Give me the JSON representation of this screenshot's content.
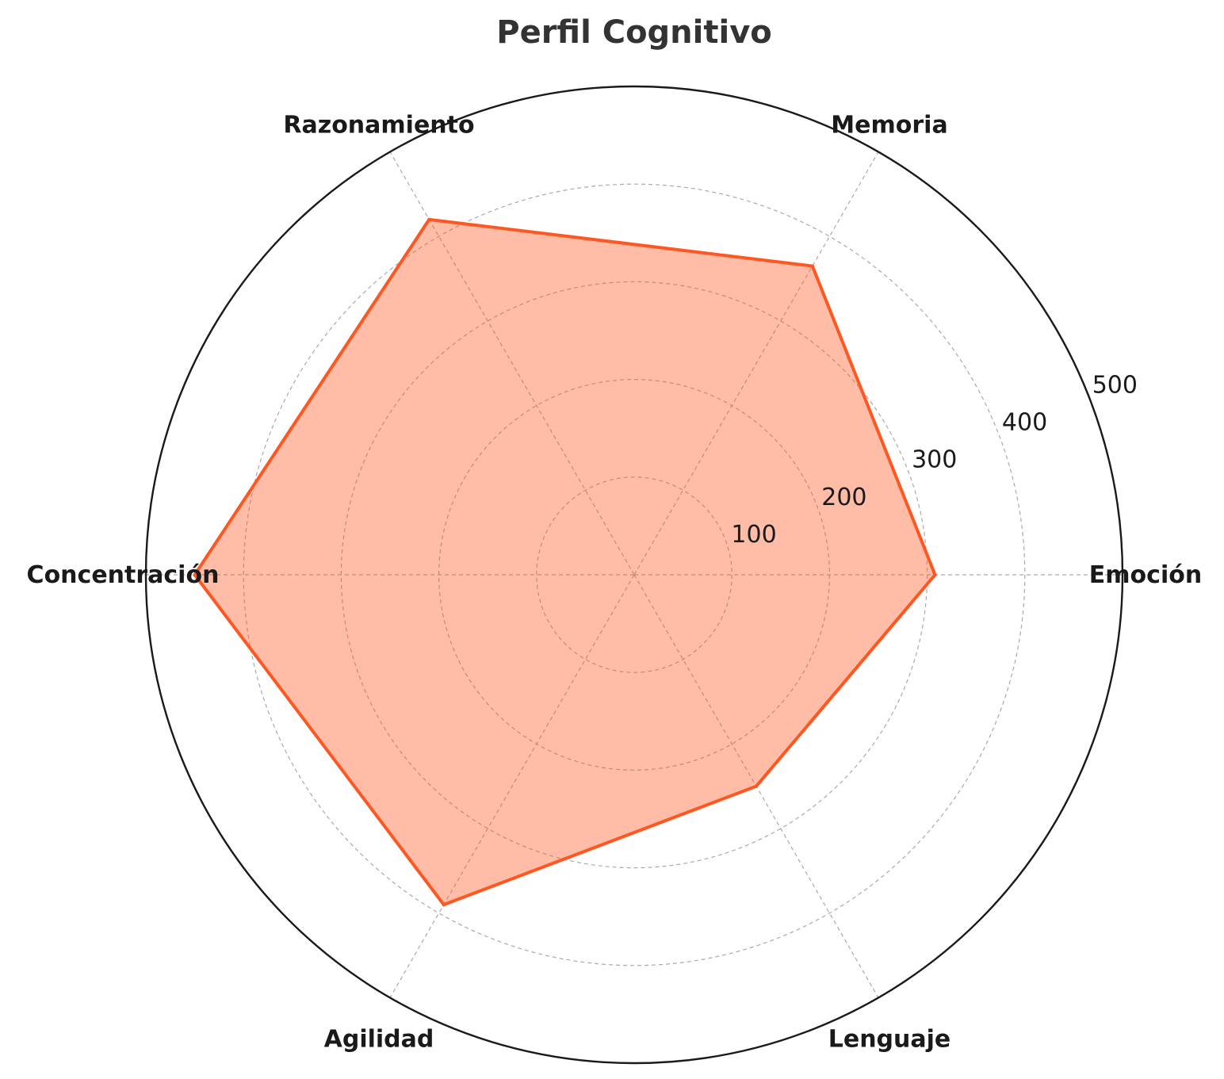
{
  "chart_data": {
    "type": "radar",
    "title": "Perfil Cognitivo",
    "categories": [
      "Emoción",
      "Memoria",
      "Razonamiento",
      "Concentración",
      "Agilidad",
      "Lenguaje"
    ],
    "series": [
      {
        "values": [
          308,
          365,
          420,
          450,
          390,
          250
        ]
      }
    ],
    "rlim": [
      0,
      500
    ],
    "rticks": [
      100,
      200,
      300,
      400,
      500
    ],
    "rtick_labels": [
      "100",
      "200",
      "300",
      "400",
      "500"
    ],
    "grid": true,
    "colors": {
      "line": "#FF5722",
      "fill": "#FF5722",
      "grid": "#aaaaaa",
      "frame": "#1a1a1a"
    }
  }
}
